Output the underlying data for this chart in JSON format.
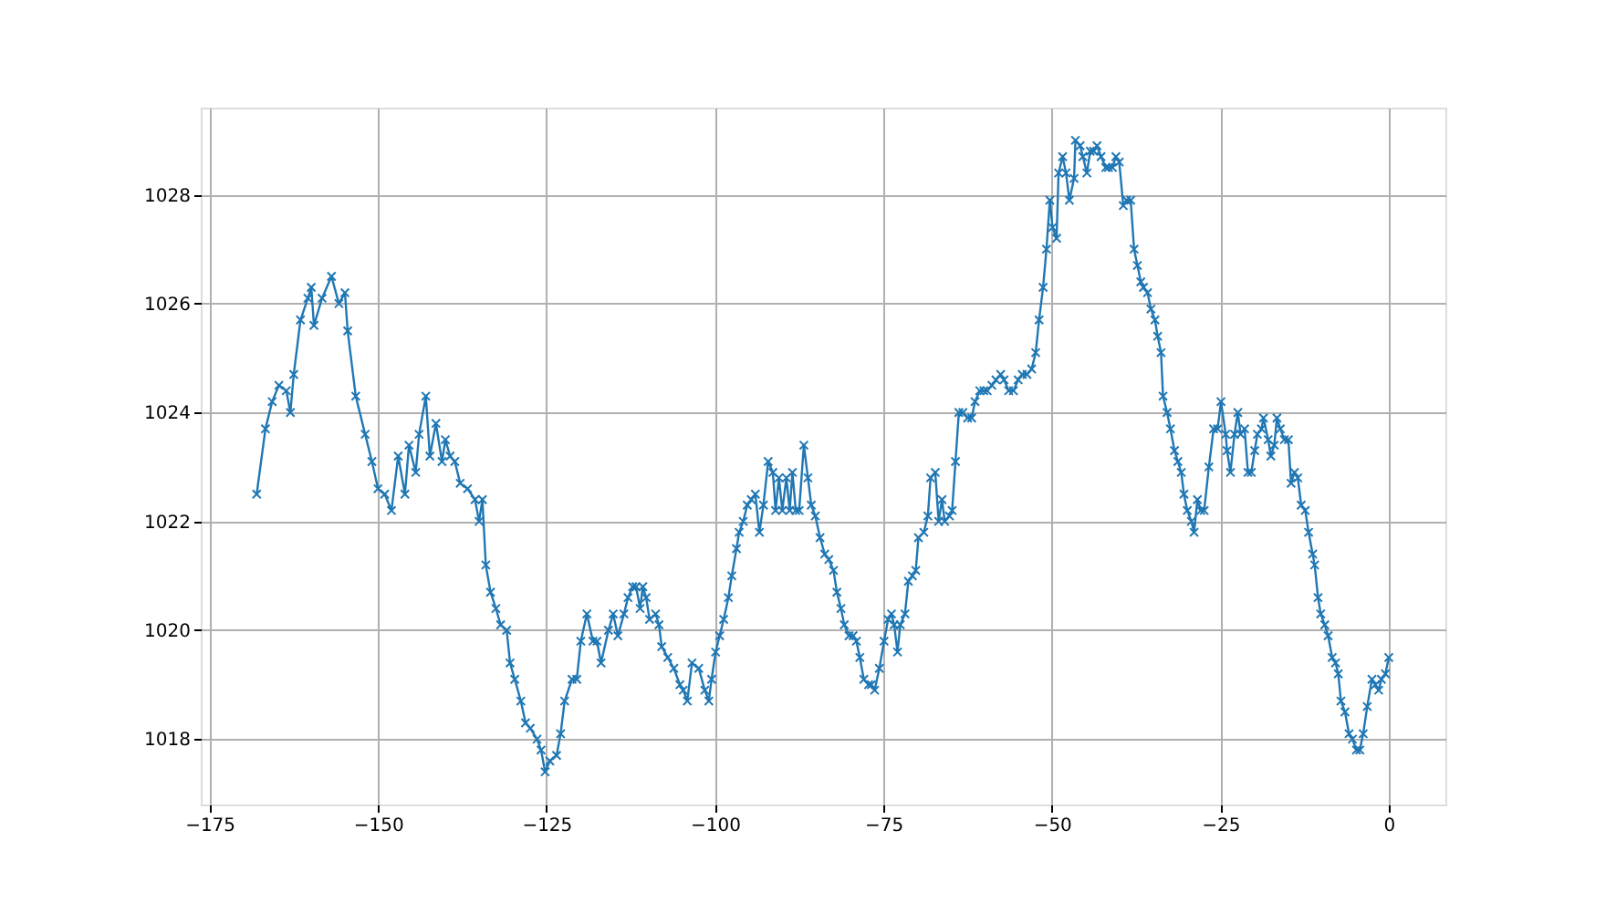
{
  "chart_data": {
    "type": "line",
    "marker": "cross",
    "line_style": "solid",
    "grid": true,
    "xlim": [
      -176.3,
      8.4
    ],
    "xticks": [
      -175,
      -150,
      -125,
      -100,
      -75,
      -50,
      -25,
      0
    ],
    "ylim": [
      1016.8,
      1029.6
    ],
    "yticks": [
      1018,
      1020,
      1022,
      1024,
      1026,
      1028
    ],
    "series": [
      {
        "color": "#1f77b4",
        "x": [
          -168.0,
          -166.7,
          -165.7,
          -164.7,
          -163.6,
          -163.0,
          -162.5,
          -161.5,
          -160.4,
          -159.9,
          -159.5,
          -158.3,
          -156.9,
          -155.8,
          -154.9,
          -154.5,
          -153.3,
          -151.9,
          -150.9,
          -150.0,
          -149.0,
          -148.0,
          -147.0,
          -146.0,
          -145.4,
          -144.4,
          -143.9,
          -142.9,
          -142.3,
          -141.4,
          -140.5,
          -140.0,
          -139.3,
          -138.6,
          -137.8,
          -136.7,
          -135.6,
          -135.0,
          -134.5,
          -134.0,
          -133.3,
          -132.5,
          -131.8,
          -130.9,
          -130.4,
          -129.7,
          -128.8,
          -128.1,
          -127.4,
          -126.4,
          -125.8,
          -125.2,
          -124.5,
          -123.5,
          -122.9,
          -122.3,
          -121.2,
          -120.5,
          -119.9,
          -119.0,
          -118.1,
          -117.5,
          -116.9,
          -115.8,
          -115.1,
          -114.4,
          -113.5,
          -112.9,
          -112.2,
          -111.7,
          -111.1,
          -110.7,
          -110.2,
          -109.7,
          -108.8,
          -108.3,
          -107.9,
          -107.0,
          -106.1,
          -105.2,
          -104.7,
          -104.1,
          -103.4,
          -102.4,
          -101.5,
          -100.9,
          -100.5,
          -99.9,
          -99.3,
          -98.7,
          -98.0,
          -97.5,
          -96.8,
          -96.4,
          -95.8,
          -95.2,
          -94.6,
          -94.0,
          -93.4,
          -92.8,
          -92.1,
          -91.4,
          -91.0,
          -90.5,
          -90.0,
          -89.4,
          -88.9,
          -88.5,
          -88.0,
          -87.5,
          -86.8,
          -86.2,
          -85.7,
          -85.1,
          -84.4,
          -83.7,
          -83.1,
          -82.4,
          -81.9,
          -81.3,
          -80.8,
          -80.1,
          -79.5,
          -79.0,
          -78.5,
          -77.9,
          -77.2,
          -76.8,
          -76.3,
          -75.6,
          -74.9,
          -74.3,
          -73.8,
          -73.4,
          -72.9,
          -72.5,
          -71.8,
          -71.3,
          -70.7,
          -70.2,
          -69.8,
          -69.0,
          -68.4,
          -68.0,
          -67.3,
          -66.8,
          -66.3,
          -65.9,
          -65.2,
          -64.8,
          -64.3,
          -63.8,
          -63.2,
          -62.5,
          -61.9,
          -61.4,
          -60.7,
          -60.1,
          -59.6,
          -58.9,
          -58.3,
          -57.6,
          -57.1,
          -56.4,
          -55.7,
          -55.0,
          -54.4,
          -53.7,
          -53.0,
          -52.4,
          -51.9,
          -51.3,
          -50.8,
          -50.3,
          -49.9,
          -49.3,
          -49.0,
          -48.4,
          -47.9,
          -47.4,
          -46.7,
          -46.5,
          -45.8,
          -45.4,
          -44.8,
          -44.3,
          -43.8,
          -43.3,
          -42.7,
          -42.0,
          -41.6,
          -41.0,
          -40.5,
          -40.0,
          -39.4,
          -38.9,
          -38.3,
          -37.8,
          -37.3,
          -36.8,
          -36.4,
          -35.8,
          -35.3,
          -34.7,
          -34.3,
          -33.8,
          -33.5,
          -32.9,
          -32.4,
          -31.8,
          -31.3,
          -30.8,
          -30.4,
          -29.9,
          -29.3,
          -28.9,
          -28.4,
          -27.9,
          -27.4,
          -26.7,
          -26.0,
          -25.4,
          -24.9,
          -24.2,
          -24.0,
          -23.5,
          -22.9,
          -22.4,
          -22.0,
          -21.4,
          -20.9,
          -20.4,
          -19.9,
          -19.5,
          -18.9,
          -18.6,
          -17.9,
          -17.5,
          -17.0,
          -16.6,
          -16.1,
          -15.5,
          -14.9,
          -14.5,
          -14.0,
          -13.5,
          -13.0,
          -12.4,
          -11.9,
          -11.3,
          -11.0,
          -10.5,
          -10.1,
          -9.5,
          -9.0,
          -8.4,
          -7.9,
          -7.5,
          -7.1,
          -6.5,
          -5.9,
          -5.4,
          -4.8,
          -4.3,
          -3.8,
          -3.2,
          -2.5,
          -2.0,
          -1.5,
          -1.1,
          -0.5,
          0.0
        ],
        "values": [
          1022.5,
          1023.7,
          1024.2,
          1024.5,
          1024.4,
          1024.0,
          1024.7,
          1025.7,
          1026.1,
          1026.3,
          1025.6,
          1026.1,
          1026.5,
          1026.0,
          1026.2,
          1025.5,
          1024.3,
          1023.6,
          1023.1,
          1022.6,
          1022.5,
          1022.2,
          1023.2,
          1022.5,
          1023.4,
          1022.9,
          1023.6,
          1024.3,
          1023.2,
          1023.8,
          1023.1,
          1023.5,
          1023.2,
          1023.1,
          1022.7,
          1022.6,
          1022.4,
          1022.0,
          1022.4,
          1021.2,
          1020.7,
          1020.4,
          1020.1,
          1020.0,
          1019.4,
          1019.1,
          1018.7,
          1018.3,
          1018.2,
          1018.0,
          1017.8,
          1017.4,
          1017.6,
          1017.7,
          1018.1,
          1018.7,
          1019.1,
          1019.1,
          1019.8,
          1020.3,
          1019.8,
          1019.8,
          1019.4,
          1020.0,
          1020.3,
          1019.9,
          1020.3,
          1020.6,
          1020.8,
          1020.8,
          1020.4,
          1020.8,
          1020.6,
          1020.2,
          1020.3,
          1020.1,
          1019.7,
          1019.5,
          1019.3,
          1019.0,
          1018.9,
          1018.7,
          1019.4,
          1019.3,
          1018.9,
          1018.7,
          1019.1,
          1019.6,
          1019.9,
          1020.2,
          1020.6,
          1021.0,
          1021.5,
          1021.8,
          1022.0,
          1022.3,
          1022.4,
          1022.5,
          1021.8,
          1022.3,
          1023.1,
          1022.9,
          1022.2,
          1022.8,
          1022.2,
          1022.8,
          1022.2,
          1022.9,
          1022.2,
          1022.2,
          1023.4,
          1022.8,
          1022.3,
          1022.1,
          1021.7,
          1021.4,
          1021.3,
          1021.1,
          1020.7,
          1020.4,
          1020.1,
          1019.9,
          1019.9,
          1019.8,
          1019.5,
          1019.1,
          1019.0,
          1019.0,
          1018.9,
          1019.3,
          1019.8,
          1020.2,
          1020.3,
          1020.1,
          1019.6,
          1020.1,
          1020.3,
          1020.9,
          1021.0,
          1021.1,
          1021.7,
          1021.8,
          1022.1,
          1022.8,
          1022.9,
          1022.0,
          1022.4,
          1022.0,
          1022.1,
          1022.2,
          1023.1,
          1024.0,
          1024.0,
          1023.9,
          1023.9,
          1024.2,
          1024.4,
          1024.4,
          1024.4,
          1024.5,
          1024.6,
          1024.7,
          1024.6,
          1024.4,
          1024.4,
          1024.6,
          1024.7,
          1024.7,
          1024.8,
          1025.1,
          1025.7,
          1026.3,
          1027.0,
          1027.9,
          1027.4,
          1027.2,
          1028.4,
          1028.7,
          1028.4,
          1027.9,
          1028.3,
          1029.0,
          1028.9,
          1028.7,
          1028.4,
          1028.8,
          1028.8,
          1028.9,
          1028.7,
          1028.5,
          1028.5,
          1028.5,
          1028.7,
          1028.6,
          1027.8,
          1027.9,
          1027.9,
          1027.0,
          1026.7,
          1026.4,
          1026.3,
          1026.2,
          1025.9,
          1025.7,
          1025.4,
          1025.1,
          1024.3,
          1024.0,
          1023.7,
          1023.3,
          1023.1,
          1022.9,
          1022.5,
          1022.2,
          1022.0,
          1021.8,
          1022.4,
          1022.2,
          1022.2,
          1023.0,
          1023.7,
          1023.7,
          1024.2,
          1023.6,
          1023.3,
          1022.9,
          1023.6,
          1024.0,
          1023.6,
          1023.7,
          1022.9,
          1022.9,
          1023.3,
          1023.6,
          1023.7,
          1023.9,
          1023.5,
          1023.2,
          1023.4,
          1023.9,
          1023.7,
          1023.5,
          1023.5,
          1022.7,
          1022.9,
          1022.8,
          1022.3,
          1022.2,
          1021.8,
          1021.4,
          1021.2,
          1020.6,
          1020.3,
          1020.1,
          1019.9,
          1019.5,
          1019.4,
          1019.2,
          1018.7,
          1018.5,
          1018.1,
          1018.0,
          1017.8,
          1017.8,
          1018.1,
          1018.6,
          1019.1,
          1019.0,
          1018.9,
          1019.1,
          1019.2,
          1019.5
        ]
      }
    ]
  }
}
